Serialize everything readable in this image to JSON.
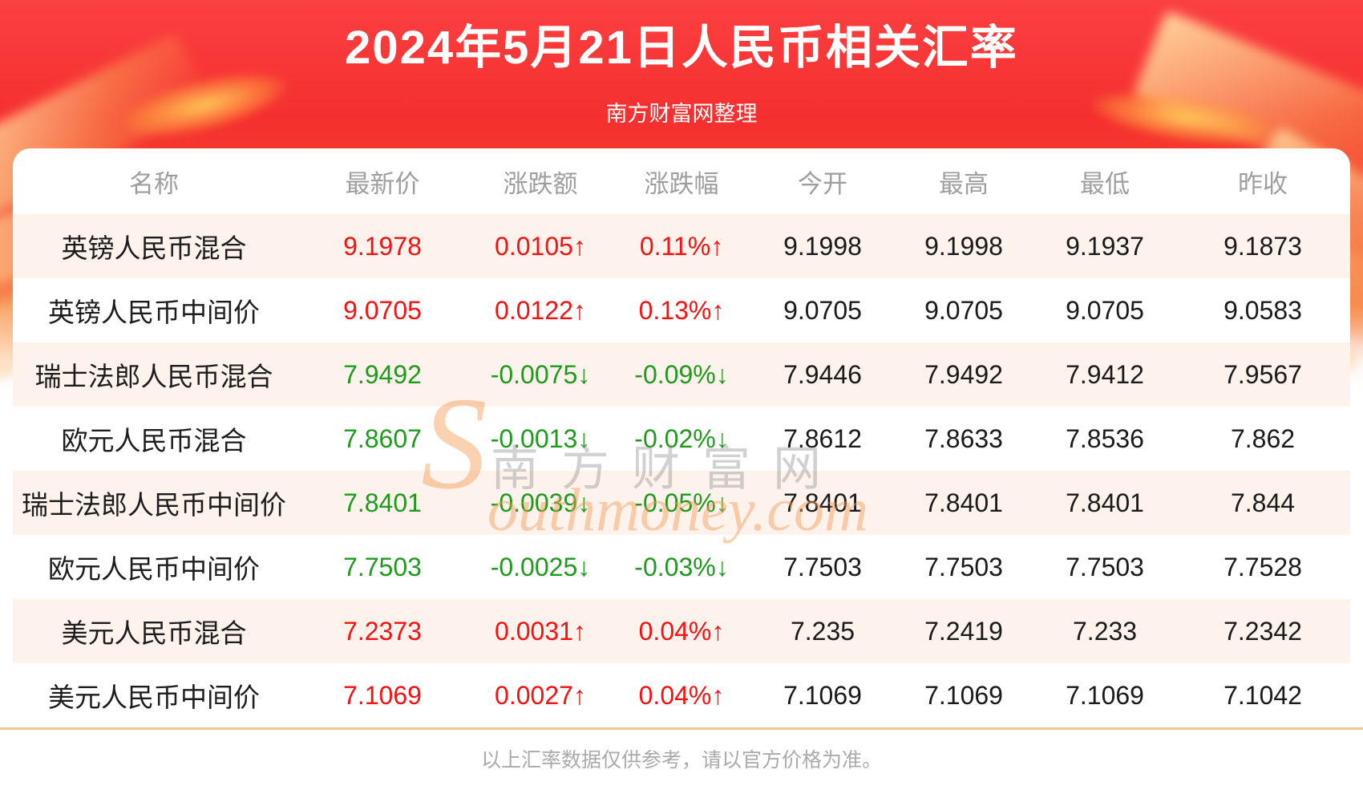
{
  "header": {
    "title": "2024年5月21日人民币相关汇率",
    "subtitle": "南方财富网整理"
  },
  "watermark": {
    "cn_text": "南方财富网",
    "en_initial": "S",
    "en_rest": "outhmoney.com"
  },
  "chart_data": {
    "type": "table",
    "title": "2024年5月21日人民币相关汇率",
    "columns": [
      "名称",
      "最新价",
      "涨跌额",
      "涨跌幅",
      "今开",
      "最高",
      "最低",
      "昨收"
    ],
    "rows": [
      [
        "英镑人民币混合",
        "9.1978",
        "0.0105↑",
        "0.11%↑",
        "9.1998",
        "9.1998",
        "9.1937",
        "9.1873"
      ],
      [
        "英镑人民币中间价",
        "9.0705",
        "0.0122↑",
        "0.13%↑",
        "9.0705",
        "9.0705",
        "9.0705",
        "9.0583"
      ],
      [
        "瑞士法郎人民币混合",
        "7.9492",
        "-0.0075↓",
        "-0.09%↓",
        "7.9446",
        "7.9492",
        "7.9412",
        "7.9567"
      ],
      [
        "欧元人民币混合",
        "7.8607",
        "-0.0013↓",
        "-0.02%↓",
        "7.8612",
        "7.8633",
        "7.8536",
        "7.862"
      ],
      [
        "瑞士法郎人民币中间价",
        "7.8401",
        "-0.0039↓",
        "-0.05%↓",
        "7.8401",
        "7.8401",
        "7.8401",
        "7.844"
      ],
      [
        "欧元人民币中间价",
        "7.7503",
        "-0.0025↓",
        "-0.03%↓",
        "7.7503",
        "7.7503",
        "7.7503",
        "7.7528"
      ],
      [
        "美元人民币混合",
        "7.2373",
        "0.0031↑",
        "0.04%↑",
        "7.235",
        "7.2419",
        "7.233",
        "7.2342"
      ],
      [
        "美元人民币中间价",
        "7.1069",
        "0.0027↑",
        "0.04%↑",
        "7.1069",
        "7.1069",
        "7.1069",
        "7.1042"
      ]
    ],
    "trends": [
      "up",
      "up",
      "down",
      "down",
      "down",
      "down",
      "up",
      "up"
    ]
  },
  "footer": {
    "disclaimer": "以上汇率数据仅供参考，请以官方价格为准。"
  },
  "colors": {
    "up_red": "#f51212",
    "down_green": "#1f9a1f",
    "banner_red": "#f52f2f",
    "row_alt_pink": "#fdf3ec",
    "divider_tan": "#f6c795",
    "header_gray": "#9e9e9e"
  }
}
